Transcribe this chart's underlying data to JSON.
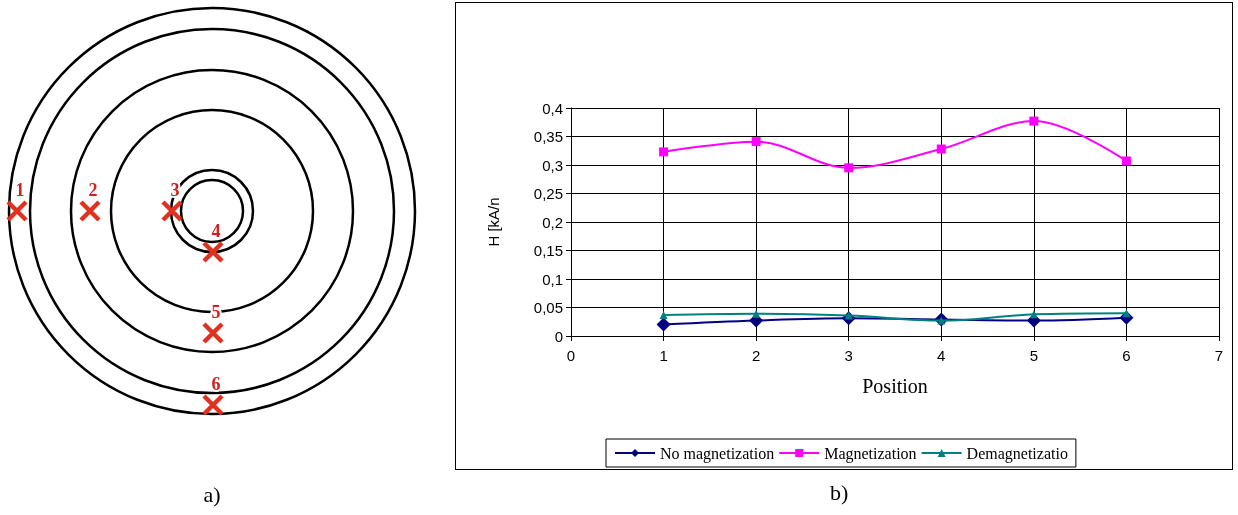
{
  "chart_data": [
    {
      "type": "other",
      "annotations": [
        "1",
        "2",
        "3",
        "4",
        "5",
        "6",
        "a)"
      ]
    },
    {
      "type": "line",
      "xlabel": "Position",
      "ylabel": "H [kA/n",
      "annotations": [
        "b)"
      ],
      "x": [
        1,
        2,
        3,
        4,
        5,
        6
      ],
      "series": [
        {
          "name": "No magnetization",
          "color": "#000080",
          "marker": "diamond",
          "values": [
            0.02,
            0.027,
            0.031,
            0.029,
            0.027,
            0.032
          ]
        },
        {
          "name": "Magnetization",
          "color": "#ff00ff",
          "marker": "square",
          "values": [
            0.323,
            0.341,
            0.295,
            0.328,
            0.377,
            0.307
          ]
        },
        {
          "name": "Demagnetizatio",
          "color": "#008080",
          "marker": "triangle",
          "values": [
            0.037,
            0.039,
            0.036,
            0.027,
            0.038,
            0.04
          ]
        }
      ],
      "xlim": [
        0,
        7
      ],
      "xticks": [
        0,
        1,
        2,
        3,
        4,
        5,
        6,
        7
      ],
      "ylim": [
        0,
        0.4
      ],
      "yticks": [
        {
          "value": 0,
          "label": "0"
        },
        {
          "value": 0.05,
          "label": "0,05"
        },
        {
          "value": 0.1,
          "label": "0,1"
        },
        {
          "value": 0.15,
          "label": "0,15"
        },
        {
          "value": 0.2,
          "label": "0,2"
        },
        {
          "value": 0.25,
          "label": "0,25"
        },
        {
          "value": 0.3,
          "label": "0,3"
        },
        {
          "value": 0.35,
          "label": "0,35"
        },
        {
          "value": 0.4,
          "label": "0,4"
        }
      ],
      "grid": true,
      "legend": "bottom"
    }
  ]
}
